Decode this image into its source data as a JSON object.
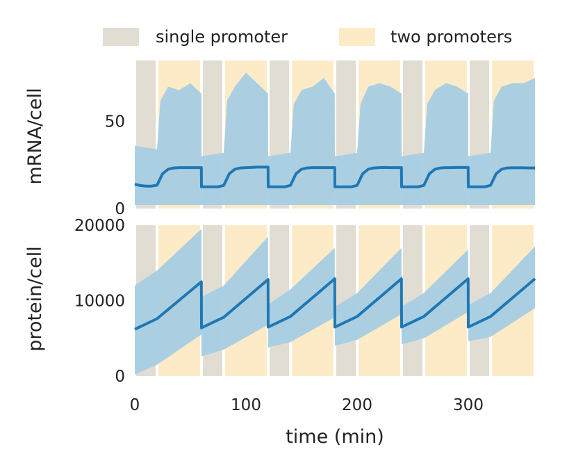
{
  "chart_data": [
    {
      "type": "line",
      "panel": "top",
      "ylabel": "mRNA/cell",
      "xlabel": "",
      "xlim": [
        0,
        360
      ],
      "ylim": [
        0,
        85
      ],
      "yticks": [
        0,
        50
      ],
      "ytick_labels": [
        "0",
        "50"
      ],
      "shading": [
        {
          "start": 0,
          "end": 20,
          "label": "single promoter"
        },
        {
          "start": 20,
          "end": 60,
          "label": "two promoters"
        },
        {
          "start": 60,
          "end": 80,
          "label": "single promoter"
        },
        {
          "start": 80,
          "end": 120,
          "label": "two promoters"
        },
        {
          "start": 120,
          "end": 140,
          "label": "single promoter"
        },
        {
          "start": 140,
          "end": 180,
          "label": "two promoters"
        },
        {
          "start": 180,
          "end": 200,
          "label": "single promoter"
        },
        {
          "start": 200,
          "end": 240,
          "label": "two promoters"
        },
        {
          "start": 240,
          "end": 260,
          "label": "single promoter"
        },
        {
          "start": 260,
          "end": 300,
          "label": "two promoters"
        },
        {
          "start": 300,
          "end": 320,
          "label": "single promoter"
        },
        {
          "start": 320,
          "end": 360,
          "label": "two promoters"
        }
      ],
      "series": [
        {
          "kind": "mean",
          "x": [
            0,
            5,
            10,
            15,
            20,
            25,
            30,
            35,
            40,
            45,
            50,
            55,
            59.9,
            60,
            65,
            70,
            75,
            80,
            85,
            90,
            95,
            100,
            105,
            110,
            115,
            119.9,
            120,
            125,
            130,
            135,
            140,
            145,
            150,
            155,
            160,
            165,
            170,
            175,
            179.9,
            180,
            185,
            190,
            195,
            200,
            205,
            210,
            215,
            220,
            225,
            230,
            235,
            239.9,
            240,
            245,
            250,
            255,
            260,
            265,
            270,
            275,
            280,
            285,
            290,
            295,
            299.9,
            300,
            305,
            310,
            315,
            320,
            325,
            330,
            335,
            340,
            345,
            350,
            355,
            360
          ],
          "y": [
            14,
            13.2,
            12.9,
            12.9,
            13.4,
            20,
            22.6,
            23.3,
            23.5,
            23.5,
            23.5,
            23.5,
            23.5,
            12.5,
            12.5,
            12.5,
            12.5,
            13.3,
            20,
            22.6,
            23.3,
            23.5,
            23.6,
            23.8,
            23.8,
            23.8,
            12.5,
            12.5,
            12.5,
            12.5,
            13.3,
            20,
            22.6,
            23.3,
            23.5,
            23.5,
            23.5,
            23.5,
            23.5,
            12.5,
            12.5,
            12.5,
            12.5,
            13.3,
            20,
            22.6,
            23.3,
            23.5,
            23.6,
            23.5,
            23.5,
            23.5,
            12.5,
            12.5,
            12.5,
            12.5,
            13.3,
            20,
            22.6,
            23.3,
            23.5,
            23.5,
            23.6,
            23.6,
            23.6,
            12.5,
            12.5,
            12.5,
            12.5,
            13.3,
            20,
            22.6,
            23.3,
            23.4,
            23.4,
            23.4,
            23.3,
            23.3
          ],
          "color": "#1f77b4"
        },
        {
          "kind": "spread-low",
          "x": [
            0,
            20,
            25,
            60,
            80,
            85,
            120,
            140,
            145,
            180,
            200,
            205,
            240,
            260,
            265,
            300,
            320,
            325,
            360
          ],
          "y": [
            2,
            2,
            2,
            2,
            2,
            2,
            2,
            2,
            2,
            2,
            2,
            2,
            2,
            2,
            2,
            2,
            2,
            2,
            2
          ],
          "color": "#a6cee3"
        },
        {
          "kind": "spread-high",
          "x": [
            0,
            20,
            23,
            30,
            40,
            50,
            59.9,
            60,
            80,
            83,
            90,
            100,
            110,
            119.9,
            120,
            140,
            143,
            150,
            160,
            170,
            179.9,
            180,
            200,
            203,
            210,
            220,
            230,
            239.9,
            240,
            260,
            263,
            270,
            280,
            290,
            299.9,
            300,
            320,
            323,
            330,
            340,
            350,
            360
          ],
          "y": [
            36,
            34,
            62,
            70,
            68,
            72,
            66,
            30,
            32,
            62,
            70,
            78,
            72,
            66,
            30,
            32,
            60,
            68,
            70,
            75,
            66,
            30,
            32,
            60,
            70,
            72,
            70,
            66,
            30,
            32,
            60,
            68,
            72,
            70,
            66,
            30,
            32,
            62,
            70,
            72,
            72,
            75
          ],
          "color": "#a6cee3"
        }
      ]
    },
    {
      "type": "line",
      "panel": "bottom",
      "ylabel": "protein/cell",
      "xlabel": "time (min)",
      "xlim": [
        0,
        360
      ],
      "ylim": [
        0,
        20000
      ],
      "yticks": [
        0,
        10000,
        20000
      ],
      "ytick_labels": [
        "0",
        "10000",
        "20000"
      ],
      "xticks": [
        0,
        100,
        200,
        300
      ],
      "xtick_labels": [
        "0",
        "100",
        "200",
        "300"
      ],
      "series": [
        {
          "kind": "mean",
          "x": [
            0,
            20,
            59.9,
            60,
            80,
            119.9,
            120,
            140,
            179.9,
            180,
            200,
            239.9,
            240,
            260,
            299.9,
            300,
            320,
            360
          ],
          "y": [
            6200,
            7600,
            12500,
            6400,
            7800,
            12800,
            6500,
            7900,
            12900,
            6500,
            7900,
            12900,
            6500,
            7900,
            12900,
            6500,
            7900,
            12900
          ],
          "color": "#1f77b4"
        },
        {
          "kind": "spread-low",
          "x": [
            0,
            20,
            59.9,
            60,
            80,
            119.9,
            120,
            140,
            179.9,
            180,
            200,
            239.9,
            240,
            260,
            299.9,
            300,
            320,
            360
          ],
          "y": [
            200,
            1500,
            5500,
            2600,
            3500,
            6800,
            3800,
            4500,
            7800,
            4000,
            4800,
            8200,
            4200,
            5000,
            8500,
            4600,
            5200,
            9000
          ],
          "color": "#a6cee3"
        },
        {
          "kind": "spread-high",
          "x": [
            0,
            20,
            59.9,
            60,
            80,
            119.9,
            120,
            140,
            179.9,
            180,
            200,
            239.9,
            240,
            260,
            299.9,
            300,
            320,
            360
          ],
          "y": [
            12000,
            14000,
            19500,
            10500,
            12000,
            18500,
            9500,
            11500,
            17000,
            9200,
            11000,
            17000,
            9200,
            11000,
            16800,
            9400,
            11000,
            17200
          ],
          "color": "#a6cee3"
        }
      ]
    }
  ],
  "legend": {
    "placement": "top",
    "items": [
      {
        "label": "single promoter",
        "color": "#e2ddd2"
      },
      {
        "label": "two promoters",
        "color": "#fdebc8"
      }
    ]
  },
  "colors": {
    "single_promoter": "#e2ddd2",
    "two_promoters": "#fdebc8",
    "mean_line": "#1f77b4",
    "spread": "#a6cee3"
  }
}
